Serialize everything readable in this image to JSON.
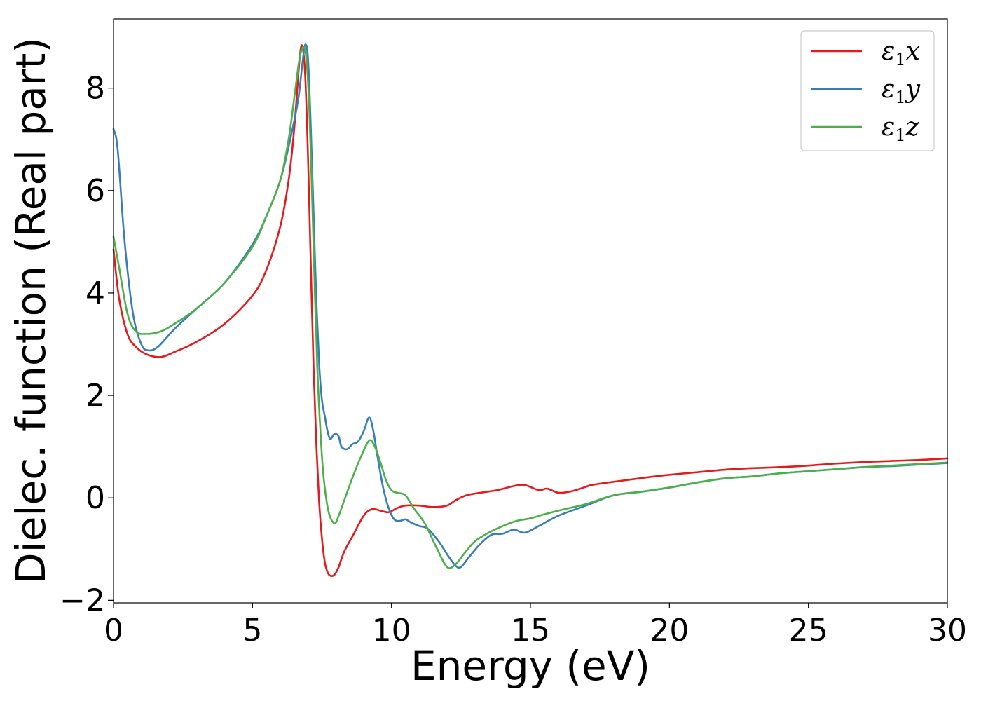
{
  "chart_data": {
    "type": "line",
    "xlabel": "Energy (eV)",
    "ylabel": "Dielec. function (Real part)",
    "xlim": [
      0,
      30
    ],
    "ylim": [
      -2.05,
      9.35
    ],
    "xticks": [
      0,
      5,
      10,
      15,
      20,
      25,
      30
    ],
    "xtick_labels": [
      "0",
      "5",
      "10",
      "15",
      "20",
      "25",
      "30"
    ],
    "yticks": [
      -2,
      0,
      2,
      4,
      6,
      8
    ],
    "ytick_labels": [
      "−2",
      "0",
      "2",
      "4",
      "6",
      "8"
    ],
    "grid": false,
    "legend_position": "top-right",
    "series": [
      {
        "name": "ε1x",
        "legend_main": "ε",
        "legend_sub": "1",
        "legend_var": "x",
        "color": "#e41a1c",
        "x": [
          0,
          0.2,
          0.5,
          0.8,
          1.2,
          1.7,
          2.2,
          3,
          4,
          5,
          5.5,
          6,
          6.3,
          6.5,
          6.7,
          6.8,
          6.9,
          7.0,
          7.1,
          7.2,
          7.3,
          7.4,
          7.5,
          7.6,
          7.7,
          7.8,
          7.95,
          8.1,
          8.3,
          8.6,
          9.0,
          9.3,
          9.6,
          9.9,
          10.2,
          10.5,
          11,
          11.5,
          12,
          12.3,
          12.7,
          13.2,
          13.8,
          14.4,
          14.8,
          15.3,
          15.6,
          16,
          16.4,
          16.8,
          17.2,
          17.8,
          18.5,
          19.2,
          20,
          21,
          22,
          23,
          24,
          25,
          26,
          27,
          28,
          29,
          30
        ],
        "y": [
          4.85,
          3.9,
          3.2,
          2.95,
          2.8,
          2.75,
          2.85,
          3.05,
          3.4,
          3.95,
          4.45,
          5.3,
          6.2,
          7.2,
          8.6,
          8.8,
          8.2,
          6.6,
          4.5,
          2.5,
          1.0,
          -0.1,
          -0.8,
          -1.25,
          -1.45,
          -1.52,
          -1.5,
          -1.35,
          -1.05,
          -0.75,
          -0.35,
          -0.22,
          -0.25,
          -0.28,
          -0.2,
          -0.15,
          -0.15,
          -0.18,
          -0.15,
          -0.05,
          0.05,
          0.1,
          0.15,
          0.23,
          0.25,
          0.15,
          0.18,
          0.1,
          0.12,
          0.18,
          0.25,
          0.3,
          0.35,
          0.4,
          0.45,
          0.5,
          0.55,
          0.58,
          0.6,
          0.63,
          0.67,
          0.7,
          0.72,
          0.74,
          0.77
        ]
      },
      {
        "name": "ε1y",
        "legend_main": "ε",
        "legend_sub": "1",
        "legend_var": "y",
        "color": "#377eb8",
        "x": [
          0,
          0.15,
          0.4,
          0.7,
          1.0,
          1.25,
          1.6,
          2.2,
          3,
          4,
          5,
          5.5,
          6,
          6.4,
          6.65,
          6.8,
          6.9,
          7.0,
          7.1,
          7.2,
          7.3,
          7.4,
          7.5,
          7.6,
          7.7,
          7.8,
          7.95,
          8.1,
          8.2,
          8.4,
          8.6,
          8.8,
          9.0,
          9.2,
          9.35,
          9.5,
          9.7,
          9.9,
          10.1,
          10.3,
          10.5,
          10.7,
          11.0,
          11.3,
          11.7,
          12.0,
          12.3,
          12.5,
          12.8,
          13.2,
          13.6,
          14.0,
          14.4,
          14.8,
          15.3,
          16,
          17,
          18,
          19,
          20,
          21,
          22,
          23,
          24,
          25,
          26,
          27,
          28,
          29,
          30
        ],
        "y": [
          7.2,
          6.8,
          5.0,
          3.6,
          3.0,
          2.88,
          2.95,
          3.3,
          3.7,
          4.2,
          4.95,
          5.5,
          6.2,
          7.1,
          7.8,
          8.5,
          8.85,
          8.55,
          7.2,
          5.5,
          3.8,
          2.6,
          1.9,
          1.6,
          1.3,
          1.15,
          1.25,
          1.2,
          1.0,
          0.95,
          1.05,
          1.1,
          1.3,
          1.57,
          1.3,
          0.8,
          0.2,
          -0.2,
          -0.42,
          -0.45,
          -0.42,
          -0.48,
          -0.55,
          -0.6,
          -0.85,
          -1.1,
          -1.32,
          -1.35,
          -1.15,
          -0.9,
          -0.72,
          -0.7,
          -0.62,
          -0.68,
          -0.55,
          -0.35,
          -0.15,
          0.05,
          0.12,
          0.2,
          0.3,
          0.38,
          0.42,
          0.48,
          0.52,
          0.56,
          0.6,
          0.62,
          0.65,
          0.68
        ]
      },
      {
        "name": "ε1z",
        "legend_main": "ε",
        "legend_sub": "1",
        "legend_var": "z",
        "color": "#4daf4a",
        "x": [
          0,
          0.2,
          0.5,
          0.8,
          1.2,
          1.7,
          2.2,
          3,
          4,
          5,
          5.5,
          6,
          6.3,
          6.5,
          6.7,
          6.85,
          6.95,
          7.05,
          7.15,
          7.25,
          7.35,
          7.5,
          7.6,
          7.75,
          7.95,
          8.1,
          8.3,
          8.6,
          8.9,
          9.2,
          9.4,
          9.6,
          9.8,
          10.0,
          10.2,
          10.5,
          10.8,
          11.2,
          11.6,
          12.0,
          12.3,
          12.6,
          13.0,
          13.5,
          14.0,
          14.5,
          15,
          15.5,
          16,
          17,
          18,
          19,
          20,
          21,
          22,
          23,
          24,
          25,
          26,
          27,
          28,
          29,
          30
        ],
        "y": [
          5.1,
          4.5,
          3.6,
          3.25,
          3.2,
          3.25,
          3.4,
          3.7,
          4.2,
          4.9,
          5.5,
          6.2,
          7.0,
          7.8,
          8.6,
          8.8,
          8.5,
          7.5,
          5.8,
          3.9,
          2.3,
          0.8,
          0.2,
          -0.3,
          -0.5,
          -0.35,
          -0.05,
          0.4,
          0.8,
          1.12,
          1.0,
          0.7,
          0.35,
          0.15,
          0.1,
          0.05,
          -0.2,
          -0.5,
          -0.95,
          -1.35,
          -1.3,
          -1.1,
          -0.85,
          -0.68,
          -0.55,
          -0.45,
          -0.4,
          -0.32,
          -0.25,
          -0.12,
          0.05,
          0.12,
          0.2,
          0.3,
          0.38,
          0.42,
          0.48,
          0.52,
          0.56,
          0.6,
          0.63,
          0.66,
          0.69
        ]
      }
    ]
  }
}
